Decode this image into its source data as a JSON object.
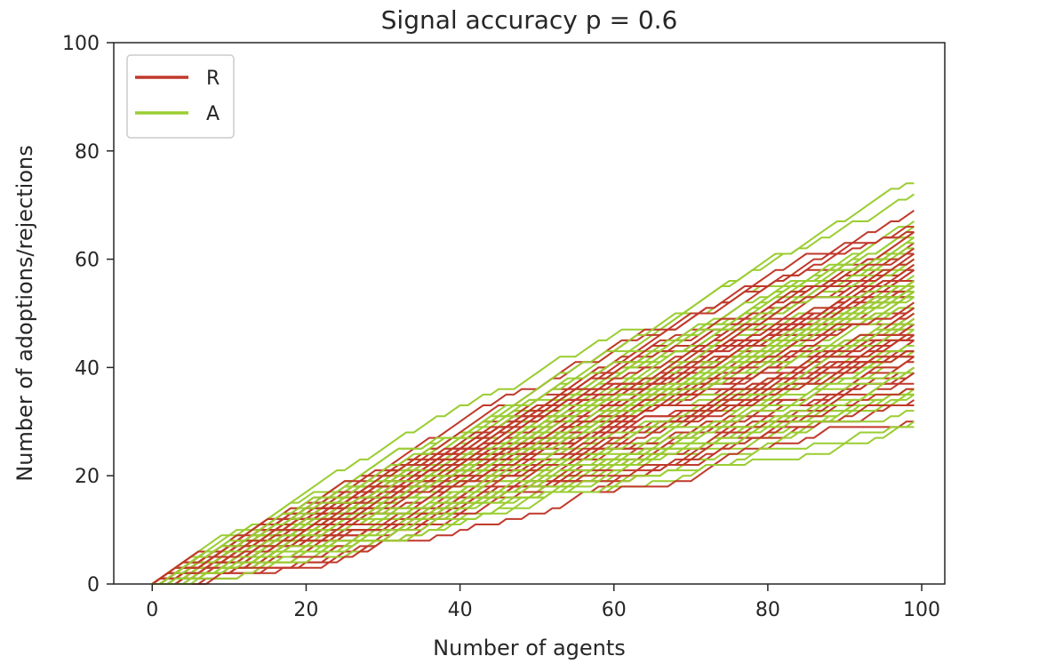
{
  "chart_data": {
    "type": "line",
    "title": "Signal accuracy p =  0.6",
    "xlabel": "Number of agents",
    "ylabel": "Number of adoptions/rejections",
    "xlim": [
      -5,
      103
    ],
    "ylim": [
      0,
      100
    ],
    "xticks": [
      0,
      20,
      40,
      60,
      80,
      100
    ],
    "yticks": [
      0,
      20,
      40,
      60,
      80,
      100
    ],
    "x_range": [
      0,
      99
    ],
    "legend_position": "top-left",
    "num_runs_per_series": 60,
    "series": [
      {
        "name": "R",
        "color": "#c0392b",
        "description_range": {
          "start": [
            0,
            0
          ],
          "end_min": 33,
          "end_max": 66
        }
      },
      {
        "name": "A",
        "color": "#9acd32",
        "description_range": {
          "start": [
            0,
            0
          ],
          "end_min": 33,
          "end_max": 67
        }
      }
    ]
  }
}
